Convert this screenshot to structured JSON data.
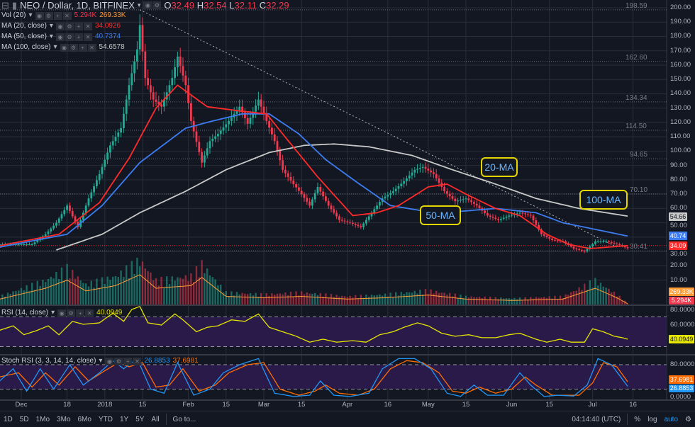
{
  "header": {
    "symbol": "NEO / Dollar, 1D, BITFINEX",
    "o_label": "O",
    "o": "32.49",
    "h_label": "H",
    "h": "32.54",
    "l_label": "L",
    "l": "32.11",
    "c_label": "C",
    "c": "32.29"
  },
  "indicators": [
    {
      "label": "Vol (20)",
      "values": [
        "5.294K",
        "269.33K"
      ],
      "colors": [
        "#f0394f",
        "#ff9b33"
      ]
    },
    {
      "label": "MA (20, close)",
      "values": [
        "34.0926"
      ],
      "colors": [
        "#ff2a2a"
      ]
    },
    {
      "label": "MA (50, close)",
      "values": [
        "40.7374"
      ],
      "colors": [
        "#3d7cf0"
      ]
    },
    {
      "label": "MA (100, close)",
      "values": [
        "54.6578"
      ],
      "colors": [
        "#c8c8c8"
      ]
    }
  ],
  "rsi": {
    "label": "RSI (14, close)",
    "value": "40.0949",
    "axis": [
      "80.0000",
      "60.0000"
    ],
    "keypoints": [
      [
        "2017-11-23",
        52
      ],
      [
        "2017-11-28",
        58
      ],
      [
        "2017-12-02",
        46
      ],
      [
        "2017-12-07",
        52
      ],
      [
        "2017-12-11",
        58
      ],
      [
        "2017-12-15",
        46
      ],
      [
        "2017-12-20",
        64
      ],
      [
        "2017-12-24",
        60
      ],
      [
        "2017-12-30",
        62
      ],
      [
        "2018-01-04",
        75
      ],
      [
        "2018-01-08",
        64
      ],
      [
        "2018-01-11",
        80
      ],
      [
        "2018-01-14",
        84
      ],
      [
        "2018-01-17",
        62
      ],
      [
        "2018-01-22",
        59
      ],
      [
        "2018-01-27",
        74
      ],
      [
        "2018-01-30",
        66
      ],
      [
        "2018-02-04",
        50
      ],
      [
        "2018-02-08",
        56
      ],
      [
        "2018-02-12",
        58
      ],
      [
        "2018-02-17",
        66
      ],
      [
        "2018-02-22",
        64
      ],
      [
        "2018-02-27",
        74
      ],
      [
        "2018-03-03",
        56
      ],
      [
        "2018-03-08",
        50
      ],
      [
        "2018-03-13",
        44
      ],
      [
        "2018-03-18",
        36
      ],
      [
        "2018-03-23",
        40
      ],
      [
        "2018-03-28",
        36
      ],
      [
        "2018-04-03",
        38
      ],
      [
        "2018-04-08",
        36
      ],
      [
        "2018-04-13",
        46
      ],
      [
        "2018-04-18",
        50
      ],
      [
        "2018-04-22",
        56
      ],
      [
        "2018-04-27",
        62
      ],
      [
        "2018-05-01",
        58
      ],
      [
        "2018-05-06",
        48
      ],
      [
        "2018-05-11",
        44
      ],
      [
        "2018-05-16",
        46
      ],
      [
        "2018-05-21",
        42
      ],
      [
        "2018-05-26",
        42
      ],
      [
        "2018-05-31",
        46
      ],
      [
        "2018-06-04",
        48
      ],
      [
        "2018-06-10",
        40
      ],
      [
        "2018-06-14",
        36
      ],
      [
        "2018-06-19",
        40
      ],
      [
        "2018-06-23",
        36
      ],
      [
        "2018-06-28",
        36
      ],
      [
        "2018-07-01",
        54
      ],
      [
        "2018-07-05",
        50
      ],
      [
        "2018-07-09",
        44
      ],
      [
        "2018-07-12",
        42
      ],
      [
        "2018-07-14",
        40
      ]
    ]
  },
  "stoch": {
    "label": "Stoch RSI (3, 3, 14, 14, close)",
    "k": "26.8853",
    "d": "37.6981",
    "axis": [
      "80.0000",
      "0.0000"
    ],
    "k_keypoints": [
      [
        "2017-11-23",
        40
      ],
      [
        "2017-11-28",
        70
      ],
      [
        "2017-12-03",
        15
      ],
      [
        "2017-12-08",
        70
      ],
      [
        "2017-12-13",
        20
      ],
      [
        "2017-12-19",
        80
      ],
      [
        "2017-12-24",
        30
      ],
      [
        "2017-12-30",
        60
      ],
      [
        "2018-01-04",
        90
      ],
      [
        "2018-01-08",
        70
      ],
      [
        "2018-01-13",
        95
      ],
      [
        "2018-01-18",
        20
      ],
      [
        "2018-01-23",
        10
      ],
      [
        "2018-01-28",
        85
      ],
      [
        "2018-02-03",
        5
      ],
      [
        "2018-02-09",
        20
      ],
      [
        "2018-02-14",
        60
      ],
      [
        "2018-02-20",
        80
      ],
      [
        "2018-02-27",
        95
      ],
      [
        "2018-03-05",
        10
      ],
      [
        "2018-03-12",
        2
      ],
      [
        "2018-03-18",
        5
      ],
      [
        "2018-03-22",
        40
      ],
      [
        "2018-03-27",
        5
      ],
      [
        "2018-04-02",
        2
      ],
      [
        "2018-04-09",
        10
      ],
      [
        "2018-04-14",
        70
      ],
      [
        "2018-04-20",
        95
      ],
      [
        "2018-04-26",
        95
      ],
      [
        "2018-05-02",
        70
      ],
      [
        "2018-05-08",
        10
      ],
      [
        "2018-05-13",
        2
      ],
      [
        "2018-05-18",
        30
      ],
      [
        "2018-05-23",
        5
      ],
      [
        "2018-05-29",
        5
      ],
      [
        "2018-06-04",
        60
      ],
      [
        "2018-06-08",
        30
      ],
      [
        "2018-06-13",
        2
      ],
      [
        "2018-06-18",
        5
      ],
      [
        "2018-06-24",
        3
      ],
      [
        "2018-06-29",
        30
      ],
      [
        "2018-07-03",
        95
      ],
      [
        "2018-07-08",
        80
      ],
      [
        "2018-07-14",
        27
      ]
    ],
    "d_keypoints": [
      [
        "2017-11-23",
        50
      ],
      [
        "2017-11-30",
        60
      ],
      [
        "2017-12-05",
        25
      ],
      [
        "2017-12-10",
        60
      ],
      [
        "2017-12-15",
        30
      ],
      [
        "2017-12-21",
        75
      ],
      [
        "2017-12-26",
        40
      ],
      [
        "2018-01-01",
        65
      ],
      [
        "2018-01-06",
        85
      ],
      [
        "2018-01-10",
        75
      ],
      [
        "2018-01-15",
        85
      ],
      [
        "2018-01-20",
        25
      ],
      [
        "2018-01-25",
        30
      ],
      [
        "2018-01-30",
        70
      ],
      [
        "2018-02-05",
        15
      ],
      [
        "2018-02-11",
        30
      ],
      [
        "2018-02-16",
        60
      ],
      [
        "2018-02-23",
        80
      ],
      [
        "2018-03-01",
        85
      ],
      [
        "2018-03-07",
        20
      ],
      [
        "2018-03-14",
        5
      ],
      [
        "2018-03-20",
        15
      ],
      [
        "2018-03-24",
        30
      ],
      [
        "2018-03-29",
        10
      ],
      [
        "2018-04-05",
        5
      ],
      [
        "2018-04-11",
        20
      ],
      [
        "2018-04-17",
        70
      ],
      [
        "2018-04-23",
        90
      ],
      [
        "2018-04-29",
        85
      ],
      [
        "2018-05-05",
        60
      ],
      [
        "2018-05-10",
        15
      ],
      [
        "2018-05-15",
        10
      ],
      [
        "2018-05-20",
        25
      ],
      [
        "2018-05-26",
        10
      ],
      [
        "2018-06-01",
        20
      ],
      [
        "2018-06-06",
        50
      ],
      [
        "2018-06-10",
        30
      ],
      [
        "2018-06-16",
        5
      ],
      [
        "2018-06-26",
        5
      ],
      [
        "2018-07-01",
        35
      ],
      [
        "2018-07-05",
        85
      ],
      [
        "2018-07-10",
        75
      ],
      [
        "2018-07-14",
        38
      ]
    ]
  },
  "price": {
    "close_keypoints": [
      [
        "2017-11-23",
        35
      ],
      [
        "2017-12-05",
        35
      ],
      [
        "2017-12-10",
        42
      ],
      [
        "2017-12-14",
        50
      ],
      [
        "2017-12-18",
        62
      ],
      [
        "2017-12-22",
        47
      ],
      [
        "2017-12-26",
        67
      ],
      [
        "2017-12-30",
        84
      ],
      [
        "2018-01-03",
        104
      ],
      [
        "2018-01-07",
        116
      ],
      [
        "2018-01-10",
        146
      ],
      [
        "2018-01-13",
        171
      ],
      [
        "2018-01-14",
        188
      ],
      [
        "2018-01-16",
        151
      ],
      [
        "2018-01-19",
        136
      ],
      [
        "2018-01-22",
        131
      ],
      [
        "2018-01-26",
        151
      ],
      [
        "2018-01-28",
        166
      ],
      [
        "2018-01-31",
        146
      ],
      [
        "2018-02-02",
        121
      ],
      [
        "2018-02-06",
        92
      ],
      [
        "2018-02-09",
        107
      ],
      [
        "2018-02-12",
        112
      ],
      [
        "2018-02-16",
        121
      ],
      [
        "2018-02-20",
        131
      ],
      [
        "2018-02-23",
        119
      ],
      [
        "2018-02-27",
        136
      ],
      [
        "2018-03-02",
        121
      ],
      [
        "2018-03-05",
        107
      ],
      [
        "2018-03-08",
        87
      ],
      [
        "2018-03-12",
        77
      ],
      [
        "2018-03-15",
        70
      ],
      [
        "2018-03-18",
        62
      ],
      [
        "2018-03-21",
        75
      ],
      [
        "2018-03-25",
        62
      ],
      [
        "2018-03-29",
        52
      ],
      [
        "2018-04-02",
        50
      ],
      [
        "2018-04-06",
        47
      ],
      [
        "2018-04-10",
        57
      ],
      [
        "2018-04-14",
        67
      ],
      [
        "2018-04-18",
        72
      ],
      [
        "2018-04-22",
        79
      ],
      [
        "2018-04-26",
        87
      ],
      [
        "2018-04-29",
        89
      ],
      [
        "2018-05-03",
        84
      ],
      [
        "2018-05-07",
        72
      ],
      [
        "2018-05-11",
        65
      ],
      [
        "2018-05-15",
        67
      ],
      [
        "2018-05-19",
        62
      ],
      [
        "2018-05-23",
        55
      ],
      [
        "2018-05-27",
        52
      ],
      [
        "2018-05-31",
        55
      ],
      [
        "2018-06-04",
        57
      ],
      [
        "2018-06-08",
        55
      ],
      [
        "2018-06-12",
        42
      ],
      [
        "2018-06-16",
        38
      ],
      [
        "2018-06-20",
        37
      ],
      [
        "2018-06-24",
        32
      ],
      [
        "2018-06-28",
        30
      ],
      [
        "2018-07-02",
        37
      ],
      [
        "2018-07-06",
        37
      ],
      [
        "2018-07-10",
        35
      ],
      [
        "2018-07-14",
        32.29
      ]
    ],
    "ma20": [
      [
        "2017-11-23",
        34
      ],
      [
        "2017-12-15",
        42
      ],
      [
        "2017-12-30",
        64
      ],
      [
        "2018-01-10",
        95
      ],
      [
        "2018-01-20",
        130
      ],
      [
        "2018-01-28",
        146
      ],
      [
        "2018-02-08",
        131
      ],
      [
        "2018-02-20",
        128
      ],
      [
        "2018-03-02",
        126
      ],
      [
        "2018-03-08",
        112
      ],
      [
        "2018-03-21",
        82
      ],
      [
        "2018-04-03",
        55
      ],
      [
        "2018-04-12",
        57
      ],
      [
        "2018-04-20",
        62
      ],
      [
        "2018-05-01",
        75
      ],
      [
        "2018-05-08",
        77
      ],
      [
        "2018-05-15",
        70
      ],
      [
        "2018-05-26",
        60
      ],
      [
        "2018-06-04",
        55
      ],
      [
        "2018-06-14",
        42
      ],
      [
        "2018-06-22",
        35
      ],
      [
        "2018-06-30",
        32
      ],
      [
        "2018-07-14",
        34.09
      ]
    ],
    "ma50": [
      [
        "2017-11-23",
        33
      ],
      [
        "2017-12-18",
        42
      ],
      [
        "2017-12-31",
        62
      ],
      [
        "2018-01-14",
        92
      ],
      [
        "2018-01-31",
        116
      ],
      [
        "2018-02-10",
        121
      ],
      [
        "2018-02-21",
        126
      ],
      [
        "2018-03-03",
        126
      ],
      [
        "2018-03-14",
        112
      ],
      [
        "2018-03-24",
        94
      ],
      [
        "2018-04-04",
        79
      ],
      [
        "2018-04-17",
        62
      ],
      [
        "2018-04-30",
        58
      ],
      [
        "2018-05-13",
        58
      ],
      [
        "2018-05-26",
        60
      ],
      [
        "2018-06-10",
        57
      ],
      [
        "2018-06-20",
        50
      ],
      [
        "2018-07-03",
        45
      ],
      [
        "2018-07-14",
        40.74
      ]
    ],
    "ma100": [
      [
        "2017-12-14",
        31
      ],
      [
        "2017-12-31",
        42
      ],
      [
        "2018-01-14",
        57
      ],
      [
        "2018-01-31",
        72
      ],
      [
        "2018-02-15",
        87
      ],
      [
        "2018-03-03",
        99
      ],
      [
        "2018-03-16",
        104
      ],
      [
        "2018-03-27",
        105
      ],
      [
        "2018-04-09",
        103
      ],
      [
        "2018-04-25",
        97
      ],
      [
        "2018-05-10",
        87
      ],
      [
        "2018-05-26",
        77
      ],
      [
        "2018-06-10",
        67
      ],
      [
        "2018-06-26",
        60
      ],
      [
        "2018-07-14",
        54.66
      ]
    ],
    "volume_keypoints": [
      [
        "2017-11-23",
        200
      ],
      [
        "2017-12-10",
        600
      ],
      [
        "2017-12-18",
        900
      ],
      [
        "2017-12-25",
        500
      ],
      [
        "2018-01-05",
        700
      ],
      [
        "2018-01-14",
        1100
      ],
      [
        "2018-01-20",
        600
      ],
      [
        "2018-02-02",
        700
      ],
      [
        "2018-02-06",
        1000
      ],
      [
        "2018-02-15",
        300
      ],
      [
        "2018-03-01",
        250
      ],
      [
        "2018-03-15",
        300
      ],
      [
        "2018-04-01",
        200
      ],
      [
        "2018-04-15",
        250
      ],
      [
        "2018-05-01",
        350
      ],
      [
        "2018-05-15",
        200
      ],
      [
        "2018-06-01",
        150
      ],
      [
        "2018-06-20",
        200
      ],
      [
        "2018-07-02",
        600
      ],
      [
        "2018-07-10",
        250
      ],
      [
        "2018-07-14",
        30
      ]
    ],
    "horizontal_levels": [
      "198.59",
      "162.60",
      "134.34",
      "114.50",
      "94.65",
      "70.10",
      "30.41"
    ],
    "trendline": [
      [
        "2018-01-14",
        198.59
      ],
      [
        "2018-07-10",
        33
      ]
    ],
    "axis_ticks": [
      "200.00",
      "190.00",
      "180.00",
      "170.00",
      "160.00",
      "150.00",
      "140.00",
      "130.00",
      "120.00",
      "110.00",
      "100.00",
      "90.00",
      "80.00",
      "70.00",
      "60.00",
      "50.00",
      "30.00",
      "20.00",
      "10.00"
    ],
    "tags": [
      {
        "text": "54.66",
        "color": "#c8c8c8",
        "value": 54.66
      },
      {
        "text": "40.74",
        "color": "#3d7cf0",
        "value": 40.74
      },
      {
        "text": "34.09",
        "color": "#ff2a2a",
        "value": 34.09
      }
    ],
    "volume_tags": [
      "269.33K",
      "5.294K"
    ]
  },
  "annotations": {
    "ma20": "20-MA",
    "ma50": "50-MA",
    "ma100": "100-MA"
  },
  "colors": {
    "up": "#22ab94",
    "down": "#f0394f",
    "background": "#131722",
    "grid": "#2a2e39",
    "rsi_line": "#e6e600",
    "stoch_k": "#2196f3",
    "stoch_d": "#ff6d00",
    "band": "#2a1a4a"
  },
  "time_axis": [
    [
      "Dec",
      "2017-12-01"
    ],
    [
      "18",
      "2017-12-18"
    ],
    [
      "2018",
      "2018-01-01"
    ],
    [
      "15",
      "2018-01-15"
    ],
    [
      "Feb",
      "2018-02-01"
    ],
    [
      "15",
      "2018-02-15"
    ],
    [
      "Mar",
      "2018-03-01"
    ],
    [
      "15",
      "2018-03-15"
    ],
    [
      "Apr",
      "2018-04-01"
    ],
    [
      "16",
      "2018-04-16"
    ],
    [
      "May",
      "2018-05-01"
    ],
    [
      "15",
      "2018-05-15"
    ],
    [
      "Jun",
      "2018-06-01"
    ],
    [
      "15",
      "2018-06-15"
    ],
    [
      "Jul",
      "2018-07-01"
    ],
    [
      "16",
      "2018-07-16"
    ]
  ],
  "bottom": {
    "ranges": [
      "1D",
      "5D",
      "1Mo",
      "3Mo",
      "6Mo",
      "YTD",
      "1Y",
      "5Y",
      "All"
    ],
    "goto": "Go to...",
    "time": "04:14:40 (UTC)",
    "percent": "%",
    "log": "log",
    "auto": "auto"
  }
}
